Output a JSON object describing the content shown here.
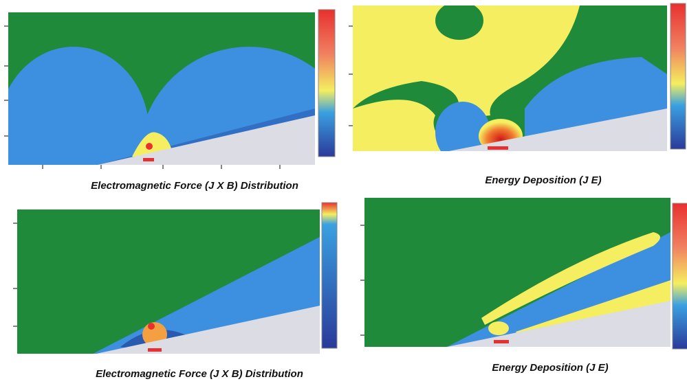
{
  "panels": [
    {
      "caption": "Electromagnetic Force (J X B) Distribution"
    },
    {
      "caption": "Energy Deposition (J E)"
    },
    {
      "caption": "Electromagnetic Force (J X B) Distribution"
    },
    {
      "caption": "Energy Deposition (J E)"
    }
  ]
}
